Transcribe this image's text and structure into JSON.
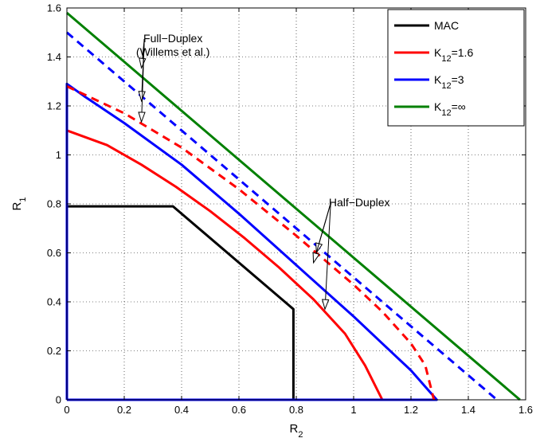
{
  "chart_data": {
    "type": "line",
    "title": "",
    "xlabel": "R",
    "xlabel_sub": "2",
    "ylabel": "R",
    "ylabel_sub": "1",
    "xlim": [
      0,
      1.6
    ],
    "ylim": [
      0,
      1.6
    ],
    "xticks": [
      "0",
      "0.2",
      "0.4",
      "0.6",
      "0.8",
      "1",
      "1.2",
      "1.4",
      "1.6"
    ],
    "yticks": [
      "0",
      "0.2",
      "0.4",
      "0.6",
      "0.8",
      "1",
      "1.2",
      "1.4",
      "1.6"
    ],
    "grid": true,
    "legend_position": "top-right",
    "legend": [
      {
        "label": "MAC",
        "color": "#000000"
      },
      {
        "label": "K",
        "sub": "12",
        "suffix": "=1.6",
        "color": "#ff0000"
      },
      {
        "label": "K",
        "sub": "12",
        "suffix": "=3",
        "color": "#0000ff"
      },
      {
        "label": "K",
        "sub": "12",
        "suffix": "=∞",
        "color": "#008000"
      }
    ],
    "series": [
      {
        "name": "MAC",
        "color": "#000000",
        "style": "solid",
        "x": [
          0,
          0.37,
          0.79,
          0.79
        ],
        "y": [
          0.79,
          0.79,
          0.37,
          0
        ]
      },
      {
        "name": "K12=1.6",
        "color": "#ff0000",
        "style": "solid",
        "x": [
          0,
          0.14,
          0.26,
          0.38,
          0.5,
          0.62,
          0.74,
          0.86,
          0.97,
          1.04,
          1.1
        ],
        "y": [
          1.1,
          1.04,
          0.96,
          0.87,
          0.77,
          0.66,
          0.54,
          0.41,
          0.27,
          0.14,
          0
        ]
      },
      {
        "name": "K12=3",
        "color": "#0000ff",
        "style": "solid",
        "x": [
          0,
          0,
          0.06,
          0.2,
          0.4,
          0.6,
          0.8,
          1.0,
          1.1,
          1.2,
          1.29,
          0
        ],
        "y": [
          0,
          1.29,
          1.24,
          1.13,
          0.96,
          0.76,
          0.55,
          0.34,
          0.23,
          0.12,
          0,
          0
        ]
      },
      {
        "name": "K12=1.6 (Full-Duplex)",
        "color": "#ff0000",
        "style": "dashed",
        "x": [
          0,
          0.2,
          0.4,
          0.6,
          0.8,
          1.0,
          1.1,
          1.2,
          1.25,
          1.28
        ],
        "y": [
          1.28,
          1.17,
          1.03,
          0.86,
          0.67,
          0.47,
          0.36,
          0.23,
          0.14,
          0
        ]
      },
      {
        "name": "K12=3 (Full-Duplex)",
        "color": "#0000ff",
        "style": "dashed",
        "x": [
          0,
          1.5
        ],
        "y": [
          1.5,
          0
        ]
      },
      {
        "name": "K12=∞",
        "color": "#008000",
        "style": "solid",
        "x": [
          0,
          1.58
        ],
        "y": [
          1.58,
          0
        ]
      }
    ],
    "annotations": [
      {
        "lines": [
          "Full−Duplex",
          "(Willems et al.)"
        ],
        "anchor": [
          0.37,
          1.46
        ],
        "arrows": [
          [
            0.26,
            1.355
          ],
          [
            0.26,
            1.22
          ],
          [
            0.26,
            1.135
          ]
        ]
      },
      {
        "lines": [
          "Half−Duplex"
        ],
        "anchor": [
          1.02,
          0.79
        ],
        "arrows": [
          [
            0.87,
            0.6
          ],
          [
            0.86,
            0.56
          ],
          [
            0.9,
            0.37
          ]
        ]
      }
    ]
  }
}
